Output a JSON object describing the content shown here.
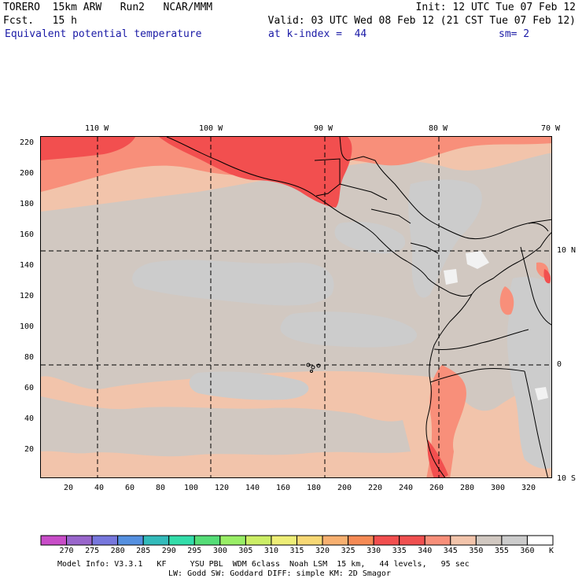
{
  "header": {
    "line1_left": "TORERO  15km ARW   Run2   NCAR/MMM",
    "line1_right": "Init: 12 UTC Tue 07 Feb 12",
    "line2_left": "Fcst.   15 h",
    "line2_right": "Valid: 03 UTC Wed 08 Feb 12 (21 CST Tue 07 Feb 12)",
    "line3_field": "Equivalent potential temperature",
    "line3_level": "at k-index =  44",
    "line3_smooth": "sm= 2"
  },
  "map": {
    "lon_labels": [
      "110 W",
      "100 W",
      "90 W",
      "80 W",
      "70 W"
    ],
    "lat_labels": [
      "10 N",
      "0",
      "10 S"
    ],
    "grid_x_labels": [
      "20",
      "40",
      "60",
      "80",
      "100",
      "120",
      "140",
      "160",
      "180",
      "200",
      "220",
      "240",
      "260",
      "280",
      "300",
      "320"
    ],
    "grid_y_labels": [
      "220",
      "200",
      "180",
      "160",
      "140",
      "120",
      "100",
      "80",
      "60",
      "40",
      "20"
    ],
    "colors": {
      "c330": "#f24f4f",
      "c335": "#f88f7a",
      "c340": "#f2c4ab",
      "c345": "#d1c8c1",
      "c350": "#cccccc",
      "c355": "#f2f2f2"
    }
  },
  "colorbar": {
    "labels": [
      "270",
      "275",
      "280",
      "285",
      "290",
      "295",
      "300",
      "305",
      "310",
      "315",
      "320",
      "325",
      "330",
      "335",
      "340",
      "345",
      "350",
      "355",
      "360"
    ],
    "unit": "K",
    "colors": [
      "#c84dc8",
      "#9966cc",
      "#7777dd",
      "#5590e0",
      "#33bbbb",
      "#33ddaa",
      "#55dd77",
      "#99ee66",
      "#ccee66",
      "#eeee77",
      "#f7d875",
      "#f7b070",
      "#f58a55",
      "#f24f4f",
      "#f05050",
      "#f88f7a",
      "#f2c4ab",
      "#d1c8c1",
      "#cccccc",
      "#ffffff"
    ]
  },
  "footer": {
    "line1": "Model Info: V3.3.1   KF     YSU PBL  WDM 6class  Noah LSM  15 km,   44 levels,   95 sec",
    "line2": "LW: Godd SW: Goddard DIFF: simple KM: 2D Smagor"
  }
}
